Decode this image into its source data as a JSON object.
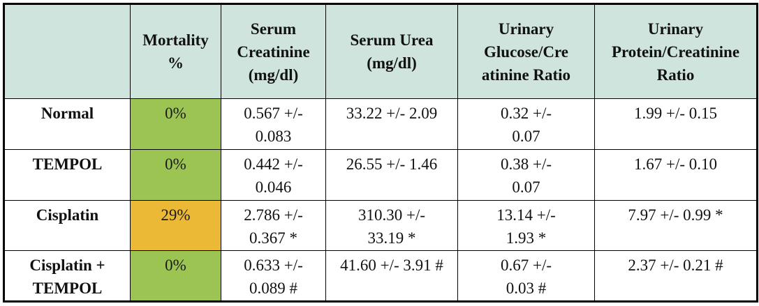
{
  "table": {
    "headers": [
      "",
      "Mortality %",
      "Serum Creatinine (mg/dl)",
      "Serum Urea (mg/dl)",
      "Urinary Glucose/Cre atinine Ratio",
      "Urinary Protein/Creatinine Ratio"
    ],
    "rows": [
      {
        "label": "Normal",
        "mortality": "0%",
        "mortality_color": "#9bc453",
        "creatinine": "0.567 +/- 0.083",
        "urea": "33.22 +/- 2.09",
        "glucose_ratio": "0.32 +/- 0.07",
        "protein_ratio": "1.99 +/- 0.15"
      },
      {
        "label": "TEMPOL",
        "mortality": "0%",
        "mortality_color": "#9bc453",
        "creatinine": "0.442 +/- 0.046",
        "urea": "26.55 +/- 1.46",
        "glucose_ratio": "0.38 +/- 0.07",
        "protein_ratio": "1.67 +/- 0.10"
      },
      {
        "label": "Cisplatin",
        "mortality": "29%",
        "mortality_color": "#ecb936",
        "creatinine": "2.786 +/- 0.367 *",
        "urea": "310.30 +/- 33.19 *",
        "glucose_ratio": "13.14 +/- 1.93 *",
        "protein_ratio": "7.97 +/- 0.99 *"
      },
      {
        "label": "Cisplatin + TEMPOL",
        "mortality": "0%",
        "mortality_color": "#9bc453",
        "creatinine": "0.633 +/- 0.089 #",
        "urea": "41.60 +/- 3.91 #",
        "glucose_ratio": "0.67 +/- 0.03 #",
        "protein_ratio": "2.37 +/- 0.21 #"
      }
    ]
  }
}
